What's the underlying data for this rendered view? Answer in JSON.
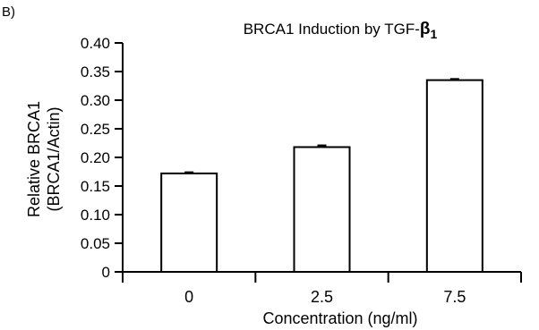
{
  "panel_label": "B)",
  "chart_data": {
    "type": "bar",
    "title": "BRCA1 Induction by TGF-",
    "title_symbol": "β",
    "title_subscript": "1",
    "xlabel": "Concentration (ng/ml)",
    "ylabel_lines": [
      "Relative BRCA1",
      "(BRCA1/Actin)"
    ],
    "categories": [
      "0",
      "2.5",
      "7.5"
    ],
    "values": [
      0.172,
      0.218,
      0.335
    ],
    "errors": [
      0.002,
      0.003,
      0.002
    ],
    "ylim": [
      0,
      0.4
    ],
    "yticks": [
      "0",
      "0.05",
      "0.10",
      "0.15",
      "0.20",
      "0.25",
      "0.30",
      "0.35",
      "0.40"
    ],
    "grid": false,
    "legend": "none"
  }
}
